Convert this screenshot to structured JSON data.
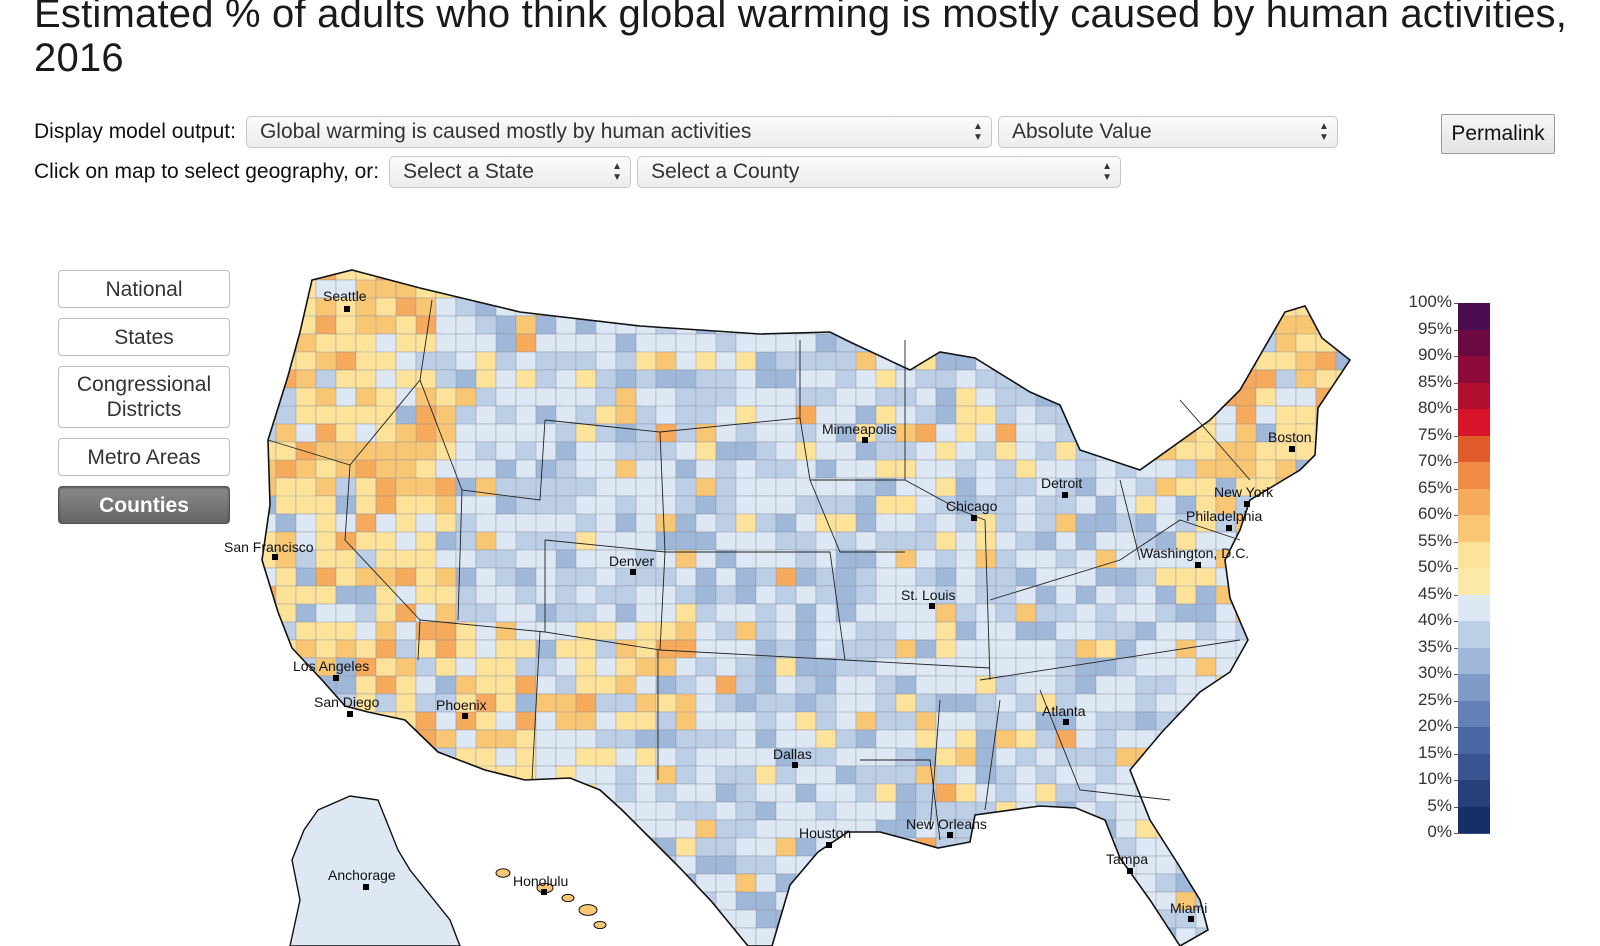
{
  "title": "Estimated % of adults who think global warming is mostly caused by human activities, 2016",
  "controls": {
    "display_label": "Display model output:",
    "output_select": "Global warming is caused mostly by human activities",
    "value_select": "Absolute Value",
    "permalink": "Permalink",
    "geo_label": "Click on map to select geography, or:",
    "state_select": "Select a State",
    "county_select": "Select a County"
  },
  "geo_buttons": [
    "National",
    "States",
    "Congressional Districts",
    "Metro Areas",
    "Counties"
  ],
  "active_geo": "Counties",
  "cities": [
    "Seattle",
    "San Francisco",
    "Los Angeles",
    "San Diego",
    "Phoenix",
    "Denver",
    "Minneapolis",
    "Chicago",
    "Detroit",
    "St. Louis",
    "Dallas",
    "Houston",
    "New Orleans",
    "Atlanta",
    "Tampa",
    "Miami",
    "Boston",
    "New York",
    "Philadelphia",
    "Washington, D.C.",
    "Anchorage",
    "Honolulu"
  ],
  "legend": {
    "labels": [
      "100%",
      "95%",
      "90%",
      "85%",
      "80%",
      "75%",
      "70%",
      "65%",
      "60%",
      "55%",
      "50%",
      "45%",
      "40%",
      "35%",
      "30%",
      "25%",
      "20%",
      "15%",
      "10%",
      "5%",
      "0%"
    ],
    "colors": [
      "#4a0b4f",
      "#6d0a43",
      "#8e0a3a",
      "#b20e30",
      "#d7142a",
      "#e05a2a",
      "#f08c46",
      "#f5aa5c",
      "#f9c774",
      "#fde39a",
      "#fdeaa8",
      "#dde8f4",
      "#bccfe6",
      "#9fb7d8",
      "#7f9ac6",
      "#6381b6",
      "#4a68a3",
      "#38538f",
      "#27407b",
      "#172f68",
      "#0c1e52"
    ]
  },
  "colors": {
    "warm_low": "#fde39a",
    "warm_mid": "#f9c774",
    "warm_high": "#f5aa5c",
    "cool_low": "#dde8f4",
    "cool_mid": "#bccfe6",
    "cool_high": "#9fb7d8"
  }
}
